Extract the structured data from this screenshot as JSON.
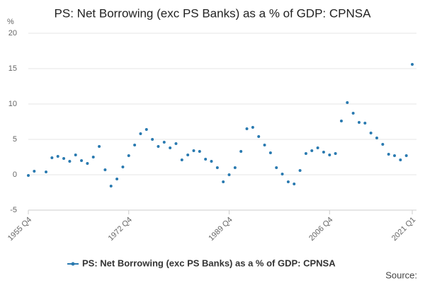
{
  "chart_data": {
    "type": "line",
    "show_line": false,
    "markers": true,
    "title": "PS: Net Borrowing (exc PS Banks) as a % of GDP: CPNSA",
    "y_label": "%",
    "source": "Source:",
    "categories": [
      "1955 Q4",
      null,
      null,
      null,
      null,
      null,
      null,
      null,
      null,
      null,
      null,
      null,
      null,
      null,
      null,
      null,
      null,
      "1972 Q4",
      null,
      null,
      null,
      null,
      null,
      null,
      null,
      null,
      null,
      null,
      null,
      null,
      null,
      null,
      null,
      null,
      "1989 Q4",
      null,
      null,
      null,
      null,
      null,
      null,
      null,
      null,
      null,
      null,
      null,
      null,
      null,
      null,
      null,
      null,
      "2006 Q4",
      null,
      null,
      null,
      null,
      null,
      null,
      null,
      null,
      null,
      null,
      null,
      null,
      null,
      "2021 Q1"
    ],
    "series": [
      {
        "name": "PS: Net Borrowing (exc PS Banks) as a % of GDP: CPNSA",
        "color": "#2a7ab0",
        "values": [
          -0.1,
          0.5,
          null,
          0.4,
          2.4,
          2.6,
          2.3,
          1.9,
          2.8,
          2.0,
          1.6,
          2.5,
          4.0,
          0.7,
          -1.6,
          -0.6,
          1.1,
          2.7,
          4.2,
          5.8,
          6.4,
          5.0,
          4.0,
          4.6,
          3.8,
          4.4,
          2.1,
          2.8,
          3.4,
          3.3,
          2.2,
          1.9,
          1.0,
          -1.0,
          0.0,
          1.0,
          3.3,
          6.5,
          6.7,
          5.4,
          4.2,
          3.1,
          1.0,
          0.1,
          -1.0,
          -1.3,
          0.6,
          3.0,
          3.4,
          3.8,
          3.2,
          2.8,
          3.0,
          7.6,
          10.2,
          8.7,
          7.4,
          7.3,
          5.9,
          5.2,
          4.3,
          2.9,
          2.7,
          2.1,
          2.7,
          15.6
        ]
      }
    ],
    "ylim": [
      -5,
      20
    ],
    "yticks": [
      -5,
      0,
      5,
      10,
      15,
      20
    ],
    "grid": true,
    "legend": "bottom"
  }
}
